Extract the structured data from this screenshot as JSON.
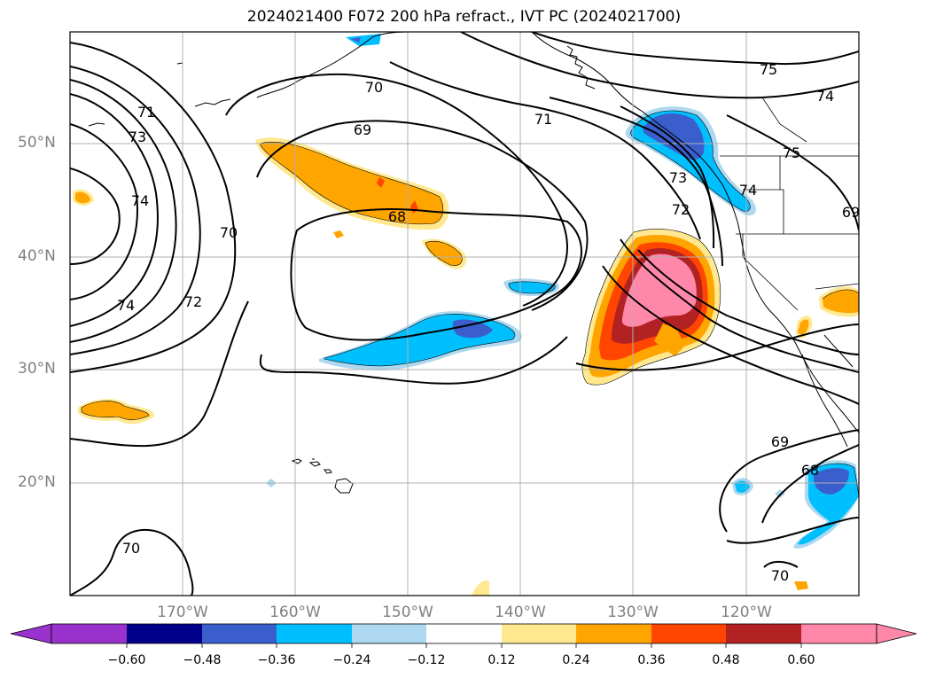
{
  "title": "2024021400 F072 200 hPa refract., IVT PC (2024021700)",
  "map": {
    "lat_labels": [
      "50°N",
      "40°N",
      "30°N",
      "20°N"
    ],
    "lon_labels": [
      "170°W",
      "160°W",
      "150°W",
      "140°W",
      "130°W",
      "120°W"
    ],
    "extent": {
      "lon": [
        -180,
        -110
      ],
      "lat": [
        10,
        60
      ]
    },
    "grid_color": "#b0b0b0",
    "tick_label_color": "#808080"
  },
  "contours": {
    "labels": [
      "75",
      "74",
      "71",
      "70",
      "69",
      "73",
      "74",
      "75",
      "70",
      "69",
      "68",
      "74",
      "72",
      "71",
      "73",
      "74",
      "72",
      "69",
      "68",
      "70",
      "70"
    ],
    "line_color": "#000000"
  },
  "colorbar": {
    "ticks": [
      "−0.60",
      "−0.48",
      "−0.36",
      "−0.24",
      "−0.12",
      "0.12",
      "0.24",
      "0.36",
      "0.48",
      "0.60"
    ],
    "colors": [
      "#9932cc",
      "#00008b",
      "#3a5fcd",
      "#00bfff",
      "#add8ef",
      "#ffffff",
      "#ffe88f",
      "#ffa500",
      "#ff4500",
      "#b22222",
      "#ff88aa"
    ]
  }
}
